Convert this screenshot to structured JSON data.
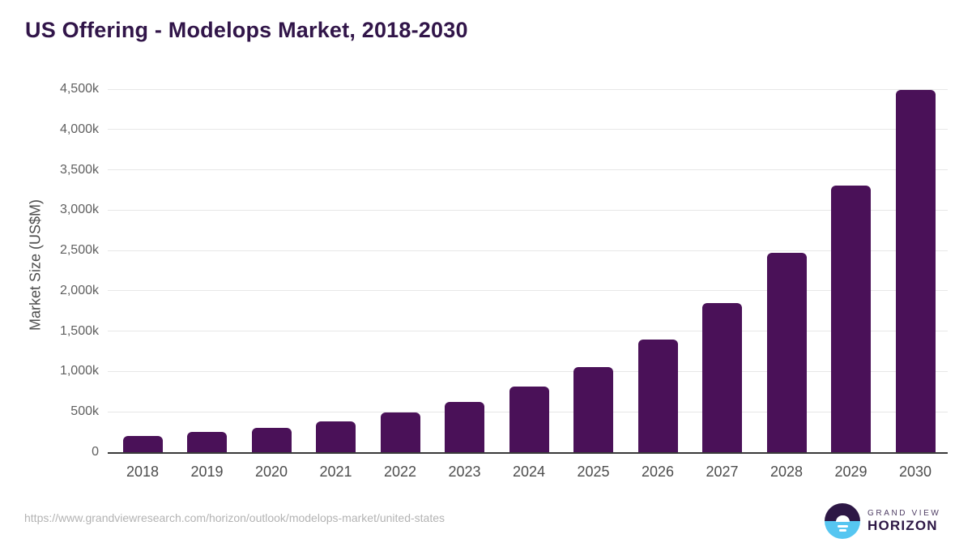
{
  "title": "US Offering - Modelops Market, 2018-2030",
  "y_axis_title": "Market Size (US$M)",
  "footer": {
    "source_url": "https://www.grandviewresearch.com/horizon/outlook/modelops-market/united-states",
    "logo": {
      "line1": "GRAND VIEW",
      "line2": "HORIZON"
    }
  },
  "colors": {
    "bar": "#4a1158",
    "title": "#311549",
    "logo_dark": "#2d1745",
    "logo_blue": "#56c6f1",
    "gridline": "#e7e7e7"
  },
  "chart_data": {
    "type": "bar",
    "title": "US Offering - Modelops Market, 2018-2030",
    "xlabel": "",
    "ylabel": "Market Size (US$M)",
    "categories": [
      "2018",
      "2019",
      "2020",
      "2021",
      "2022",
      "2023",
      "2024",
      "2025",
      "2026",
      "2027",
      "2028",
      "2029",
      "2030"
    ],
    "values": [
      200,
      250,
      305,
      383,
      492,
      621,
      810,
      1055,
      1396,
      1849,
      2468,
      3305,
      4487
    ],
    "value_unit": "thousand US$M (k)",
    "ylim": [
      0,
      4500
    ],
    "ytick_labels": [
      "0",
      "500k",
      "1,000k",
      "1,500k",
      "2,000k",
      "2,500k",
      "3,000k",
      "3,500k",
      "4,000k",
      "4,500k"
    ],
    "grid": true,
    "legend": false,
    "bar_color": "#4a1158"
  }
}
